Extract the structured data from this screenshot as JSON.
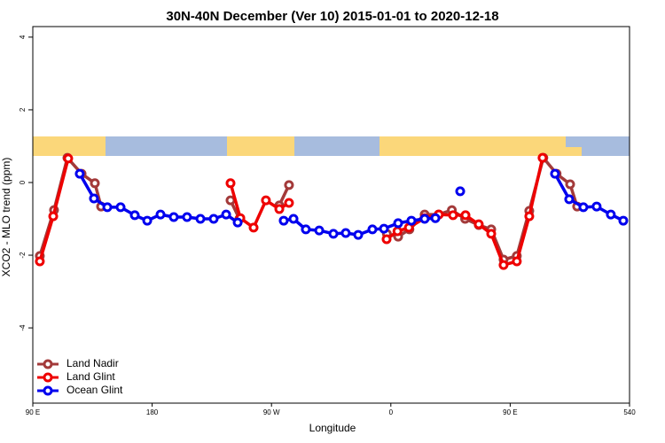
{
  "chart_data": {
    "type": "line",
    "title": "30N-40N December (Ver 10)   2015-01-01 to 2020-12-18",
    "x_label": "Longitude",
    "y_label": "XCO2 - MLO trend (ppm)",
    "xlim": [
      90,
      540
    ],
    "xticks": [
      {
        "value": 90,
        "label": "90 E"
      },
      180,
      {
        "value": 270,
        "label": "90 W"
      },
      {
        "value": 360,
        "label": "0"
      },
      {
        "value": 450,
        "label": "90 E"
      },
      540
    ],
    "ylim": [
      -6.07,
      4.29
    ],
    "yticks": [
      4,
      2,
      0,
      -2,
      -4
    ],
    "legend": "lower left",
    "series": [
      {
        "name": "Land Nadir",
        "color": "#a33a3a",
        "x": [
          95.3,
          106,
          116.1,
          126.8,
          136.8,
          141.5,
          null,
          239.1,
          245.8,
          null,
          275.9,
          283.2,
          null,
          357,
          365.5,
          374,
          385.5,
          396,
          406,
          416,
          426.3,
          435.7,
          445,
          455,
          464.4,
          475,
          485,
          495.2,
          500.5
        ],
        "values": [
          -2.02,
          -0.76,
          0.68,
          0.24,
          -0.02,
          -0.66,
          null,
          -0.49,
          -1.0,
          null,
          -0.63,
          -0.07,
          null,
          -1.41,
          -1.49,
          -1.29,
          -0.88,
          -0.88,
          -0.76,
          -1.0,
          -1.17,
          -1.29,
          -2.12,
          -2.02,
          -0.78,
          0.68,
          0.24,
          -0.05,
          -0.66
        ]
      },
      {
        "name": "Land Glint",
        "color": "#ee0000",
        "x": [
          95.3,
          105.4,
          116.7,
          null,
          239.1,
          246.5,
          256.5,
          265.8,
          275.9,
          283.2,
          null,
          356.8,
          365,
          373.6,
          385.5,
          396.2,
          406.9,
          416.3,
          426.3,
          435.7,
          445,
          455,
          464.4,
          474.4
        ],
        "values": [
          -2.17,
          -0.93,
          0.66,
          null,
          -0.02,
          -0.98,
          -1.24,
          -0.49,
          -0.73,
          -0.56,
          null,
          -1.56,
          -1.34,
          -1.24,
          -0.98,
          -0.88,
          -0.9,
          -0.9,
          -1.15,
          -1.41,
          -2.27,
          -2.17,
          -0.93,
          0.68
        ]
      },
      {
        "name": "Ocean Glint",
        "color": "#0000ee",
        "x": [
          125.4,
          136.1,
          146.2,
          156.2,
          166.9,
          176.3,
          186.3,
          196.3,
          206.3,
          216.4,
          226.4,
          235.8,
          244.5,
          null,
          279.2,
          286.6,
          295.9,
          306,
          316.7,
          326,
          335.4,
          346.1,
          354.8,
          365.5,
          375.5,
          385.5,
          393.6,
          null,
          412.3,
          null,
          483.8,
          494.5,
          505.2,
          515.2,
          525.9,
          535.3
        ],
        "values": [
          0.24,
          -0.44,
          -0.68,
          -0.68,
          -0.9,
          -1.05,
          -0.88,
          -0.95,
          -0.95,
          -1.0,
          -1.0,
          -0.88,
          -1.1,
          null,
          -1.05,
          -1.0,
          -1.29,
          -1.32,
          -1.41,
          -1.39,
          -1.44,
          -1.29,
          -1.27,
          -1.12,
          -1.05,
          -1.0,
          -0.98,
          null,
          -0.24,
          null,
          0.24,
          -0.46,
          -0.68,
          -0.66,
          -0.88,
          -1.05
        ]
      }
    ]
  }
}
